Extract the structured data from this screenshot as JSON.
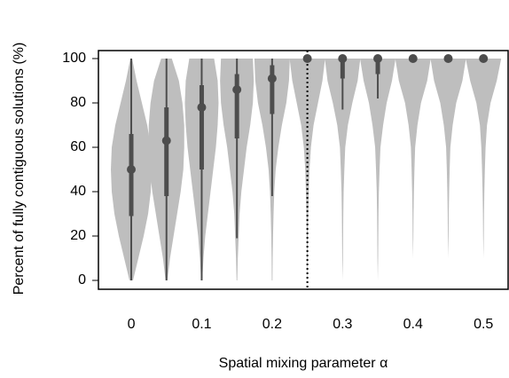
{
  "chart_data": {
    "type": "violin",
    "y_label": "Percent of fully contiguous solutions (%)",
    "x_label": "Spatial mixing parameter α",
    "xlim": [
      -0.0466,
      0.535
    ],
    "xticks": [
      0,
      0.1,
      0.2,
      0.3,
      0.4,
      0.5
    ],
    "ylim": [
      -4,
      103.6
    ],
    "yticks": [
      0,
      20,
      40,
      60,
      80,
      100
    ],
    "violin_color": "#bebebe",
    "box_color": "#4d4d4d",
    "reference_line_x": 0.25,
    "density_y": [
      0,
      10,
      20,
      30,
      40,
      50,
      60,
      70,
      80,
      90,
      100
    ],
    "violins": [
      {
        "x": 0,
        "median": 50,
        "q1": 29,
        "q3": 66,
        "whisker_low": 0,
        "whisker_high": 100,
        "density": [
          0.1,
          0.4,
          0.7,
          0.95,
          1.1,
          1.15,
          1.1,
          0.9,
          0.6,
          0.3,
          0.05
        ]
      },
      {
        "x": 0.05,
        "median": 63,
        "q1": 38,
        "q3": 78,
        "whisker_low": 0,
        "whisker_high": 100,
        "density": [
          0.05,
          0.2,
          0.4,
          0.6,
          0.8,
          0.95,
          1.0,
          1.0,
          0.9,
          0.7,
          0.3
        ]
      },
      {
        "x": 0.1,
        "median": 78,
        "q1": 50,
        "q3": 88,
        "whisker_low": 0,
        "whisker_high": 100,
        "density": [
          0.03,
          0.1,
          0.2,
          0.35,
          0.5,
          0.65,
          0.8,
          0.9,
          0.95,
          0.9,
          0.7
        ]
      },
      {
        "x": 0.15,
        "median": 86,
        "q1": 64,
        "q3": 93,
        "whisker_low": 19,
        "whisker_high": 100,
        "density": [
          0.02,
          0.05,
          0.1,
          0.15,
          0.25,
          0.4,
          0.55,
          0.75,
          0.9,
          0.95,
          0.9
        ]
      },
      {
        "x": 0.2,
        "median": 91,
        "q1": 75,
        "q3": 97,
        "whisker_low": 38,
        "whisker_high": 100,
        "density": [
          0.02,
          0.03,
          0.05,
          0.08,
          0.12,
          0.2,
          0.35,
          0.55,
          0.8,
          0.95,
          1.0
        ]
      },
      {
        "x": 0.25,
        "median": 100,
        "q1": 100,
        "q3": 100,
        "whisker_low": 100,
        "whisker_high": 100,
        "density": [
          0.01,
          0.02,
          0.03,
          0.05,
          0.08,
          0.12,
          0.2,
          0.35,
          0.6,
          0.85,
          1.0
        ]
      },
      {
        "x": 0.3,
        "median": 100,
        "q1": 91,
        "q3": 100,
        "whisker_low": 77,
        "whisker_high": 100,
        "density": [
          0,
          0.02,
          0.03,
          0.04,
          0.06,
          0.1,
          0.15,
          0.3,
          0.55,
          0.85,
          1.0
        ]
      },
      {
        "x": 0.35,
        "median": 100,
        "q1": 93,
        "q3": 100,
        "whisker_low": 82,
        "whisker_high": 100,
        "density": [
          0,
          0.02,
          0.03,
          0.04,
          0.06,
          0.1,
          0.15,
          0.3,
          0.5,
          0.8,
          1.0
        ]
      },
      {
        "x": 0.4,
        "median": 100,
        "q1": 100,
        "q3": 100,
        "whisker_low": 100,
        "whisker_high": 100,
        "density": [
          0,
          0,
          0.02,
          0.03,
          0.05,
          0.08,
          0.12,
          0.25,
          0.45,
          0.8,
          1.0
        ]
      },
      {
        "x": 0.45,
        "median": 100,
        "q1": 100,
        "q3": 100,
        "whisker_low": 100,
        "whisker_high": 100,
        "density": [
          0,
          0,
          0.02,
          0.03,
          0.05,
          0.08,
          0.12,
          0.25,
          0.45,
          0.8,
          1.0
        ]
      },
      {
        "x": 0.5,
        "median": 100,
        "q1": 100,
        "q3": 100,
        "whisker_low": 100,
        "whisker_high": 100,
        "density": [
          0,
          0,
          0.02,
          0.03,
          0.05,
          0.08,
          0.12,
          0.2,
          0.4,
          0.75,
          1.0
        ]
      }
    ]
  }
}
